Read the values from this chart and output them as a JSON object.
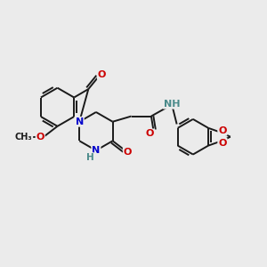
{
  "bg_color": "#ebebeb",
  "bond_color": "#1a1a1a",
  "bond_width": 1.4,
  "nitrogen_color": "#0000cc",
  "oxygen_color": "#cc0000",
  "hydrogen_color": "#4a8a8a",
  "font_size_atom": 8.0,
  "font_size_small": 6.5,
  "fig_width": 3.0,
  "fig_height": 3.0,
  "dpi": 100,
  "xlim": [
    0,
    12
  ],
  "ylim": [
    0,
    12
  ]
}
